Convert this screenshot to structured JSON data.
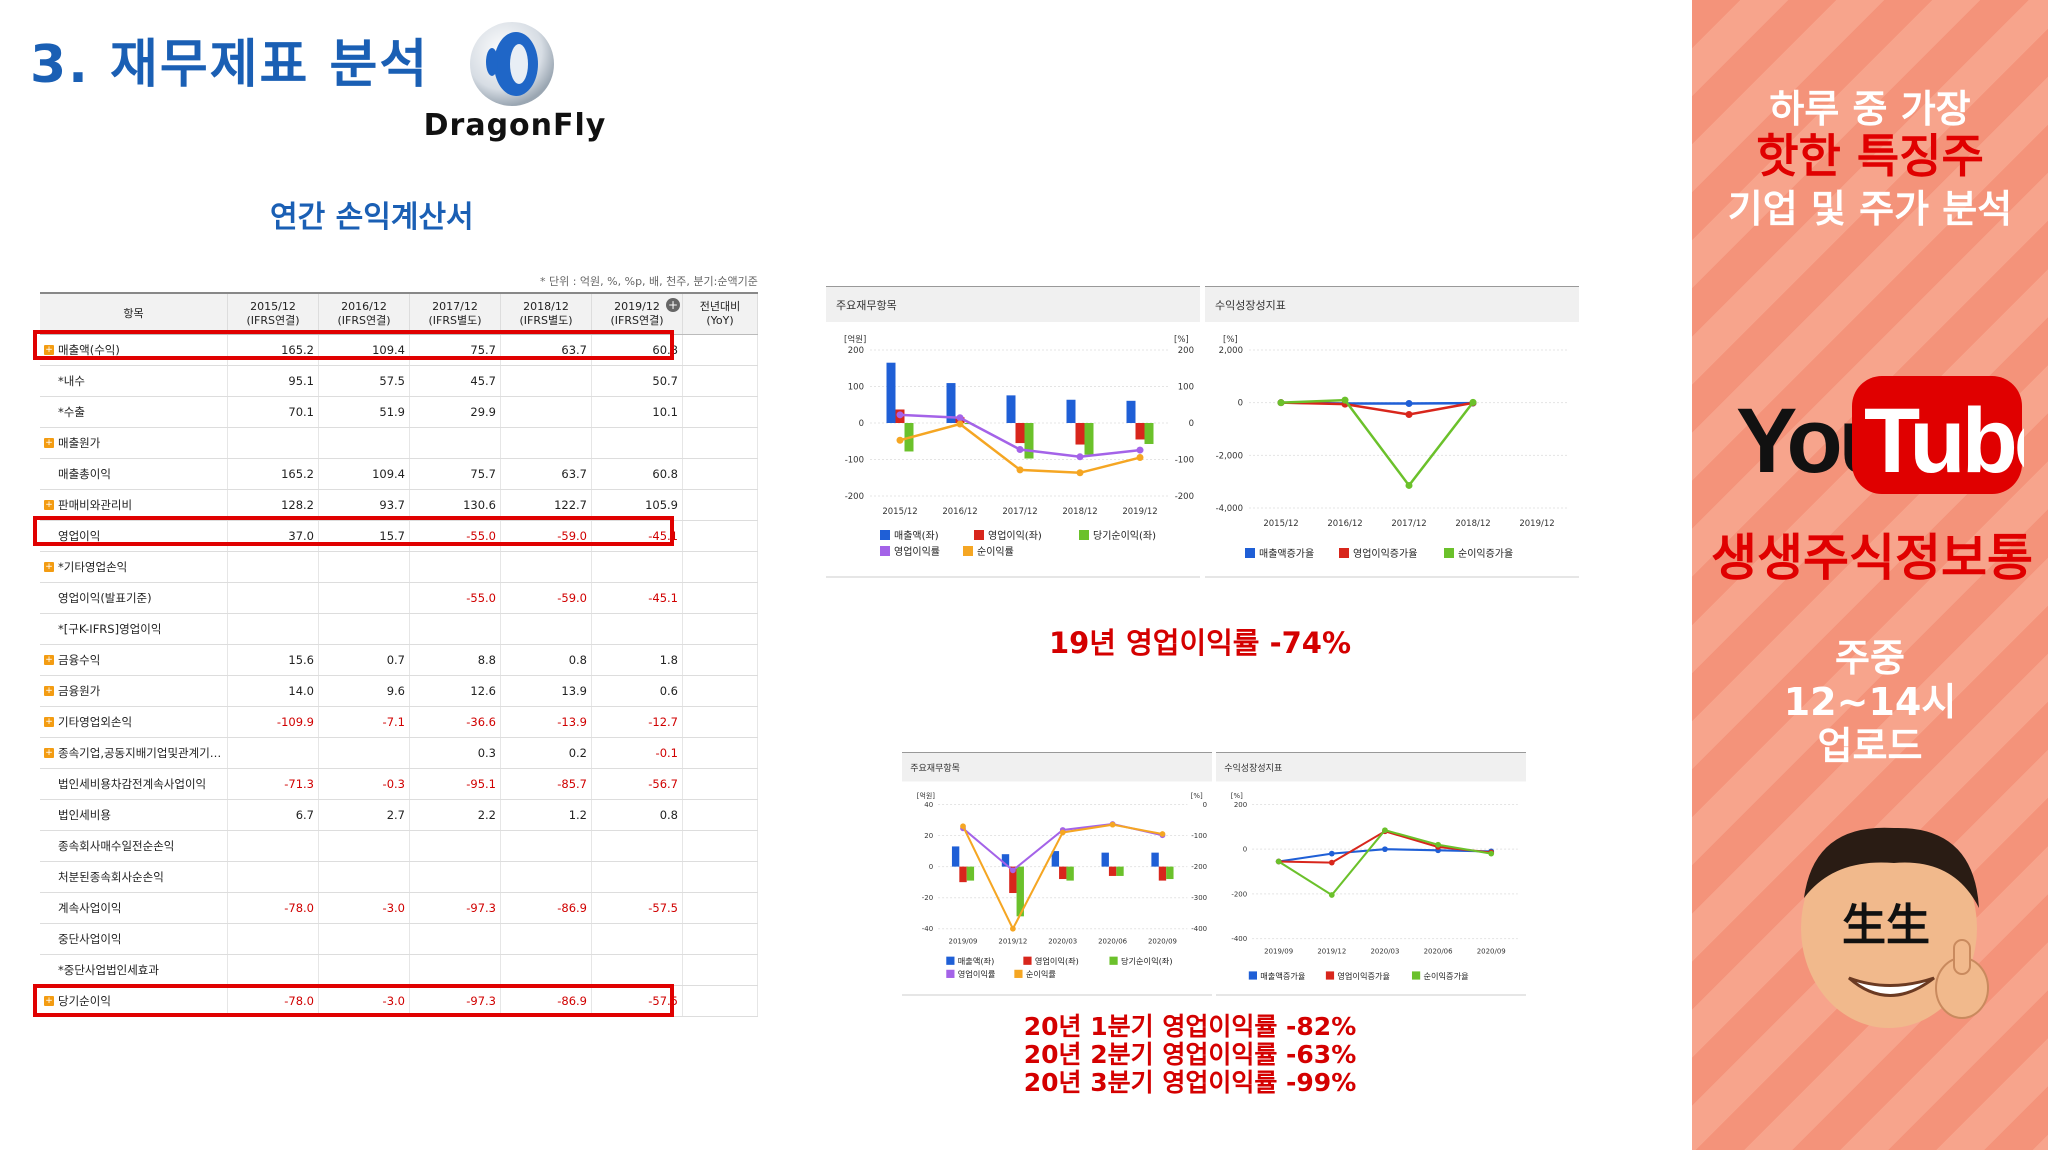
{
  "title": "3. 재무제표 분석",
  "logo_text": "DragonFly",
  "section_title": "연간 손익계산서",
  "unit_note": "* 단위 : 억원, %, %p, 배, 천주, 분기:순액기준",
  "table": {
    "header_item": "항목",
    "columns": [
      {
        "year": "2015/12",
        "basis": "(IFRS연결)"
      },
      {
        "year": "2016/12",
        "basis": "(IFRS연결)"
      },
      {
        "year": "2017/12",
        "basis": "(IFRS별도)"
      },
      {
        "year": "2018/12",
        "basis": "(IFRS별도)"
      },
      {
        "year": "2019/12",
        "basis": "(IFRS연결)"
      }
    ],
    "yoy": {
      "line1": "전년대비",
      "line2": "(YoY)"
    },
    "rows": [
      {
        "label": "매출액(수익)",
        "exp": true,
        "values": [
          "165.2",
          "109.4",
          "75.7",
          "63.7",
          "60.8"
        ]
      },
      {
        "label": "*내수",
        "exp": false,
        "values": [
          "95.1",
          "57.5",
          "45.7",
          "",
          "50.7"
        ]
      },
      {
        "label": "*수출",
        "exp": false,
        "values": [
          "70.1",
          "51.9",
          "29.9",
          "",
          "10.1"
        ]
      },
      {
        "label": "매출원가",
        "exp": true,
        "values": [
          "",
          "",
          "",
          "",
          ""
        ]
      },
      {
        "label": "매출총이익",
        "exp": false,
        "values": [
          "165.2",
          "109.4",
          "75.7",
          "63.7",
          "60.8"
        ]
      },
      {
        "label": "판매비와관리비",
        "exp": true,
        "values": [
          "128.2",
          "93.7",
          "130.6",
          "122.7",
          "105.9"
        ]
      },
      {
        "label": "영업이익",
        "exp": false,
        "values": [
          "37.0",
          "15.7",
          "-55.0",
          "-59.0",
          "-45.1"
        ]
      },
      {
        "label": "*기타영업손익",
        "exp": true,
        "values": [
          "",
          "",
          "",
          "",
          ""
        ]
      },
      {
        "label": "영업이익(발표기준)",
        "exp": false,
        "values": [
          "",
          "",
          "-55.0",
          "-59.0",
          "-45.1"
        ]
      },
      {
        "label": "*[구K-IFRS]영업이익",
        "exp": false,
        "values": [
          "",
          "",
          "",
          "",
          ""
        ]
      },
      {
        "label": "금융수익",
        "exp": true,
        "values": [
          "15.6",
          "0.7",
          "8.8",
          "0.8",
          "1.8"
        ]
      },
      {
        "label": "금융원가",
        "exp": true,
        "values": [
          "14.0",
          "9.6",
          "12.6",
          "13.9",
          "0.6"
        ]
      },
      {
        "label": "기타영업외손익",
        "exp": true,
        "values": [
          "-109.9",
          "-7.1",
          "-36.6",
          "-13.9",
          "-12.7"
        ]
      },
      {
        "label": "종속기업,공동지배기업및관계기…",
        "exp": true,
        "values": [
          "",
          "",
          "0.3",
          "0.2",
          "-0.1"
        ]
      },
      {
        "label": "법인세비용차감전계속사업이익",
        "exp": false,
        "values": [
          "-71.3",
          "-0.3",
          "-95.1",
          "-85.7",
          "-56.7"
        ]
      },
      {
        "label": "법인세비용",
        "exp": false,
        "values": [
          "6.7",
          "2.7",
          "2.2",
          "1.2",
          "0.8"
        ]
      },
      {
        "label": "종속회사매수일전순손익",
        "exp": false,
        "values": [
          "",
          "",
          "",
          "",
          ""
        ]
      },
      {
        "label": "처분된종속회사순손익",
        "exp": false,
        "values": [
          "",
          "",
          "",
          "",
          ""
        ]
      },
      {
        "label": "계속사업이익",
        "exp": false,
        "values": [
          "-78.0",
          "-3.0",
          "-97.3",
          "-86.9",
          "-57.5"
        ]
      },
      {
        "label": "중단사업이익",
        "exp": false,
        "values": [
          "",
          "",
          "",
          "",
          ""
        ]
      },
      {
        "label": "*중단사업법인세효과",
        "exp": false,
        "values": [
          "",
          "",
          "",
          "",
          ""
        ]
      },
      {
        "label": "당기순이익",
        "exp": true,
        "values": [
          "-78.0",
          "-3.0",
          "-97.3",
          "-86.9",
          "-57.5"
        ]
      }
    ]
  },
  "chart_data": [
    {
      "type": "bar",
      "title": "주요재무항목",
      "period": "annual",
      "categories": [
        "2015/12",
        "2016/12",
        "2017/12",
        "2018/12",
        "2019/12"
      ],
      "left_axis": {
        "label": "[억원]",
        "ticks": [
          "200",
          "100",
          "0",
          "-100",
          "-200"
        ],
        "range": [
          -200,
          200
        ]
      },
      "right_axis": {
        "label": "[%]",
        "ticks": [
          "200",
          "100",
          "0",
          "-100",
          "-200"
        ],
        "range": [
          -200,
          200
        ]
      },
      "series": [
        {
          "name": "매출액(좌)",
          "kind": "bar",
          "color": "#1f5fd6",
          "values": [
            165.2,
            109.4,
            75.7,
            63.7,
            60.8
          ]
        },
        {
          "name": "영업이익(좌)",
          "kind": "bar",
          "color": "#d8261c",
          "values": [
            37.0,
            15.7,
            -55.0,
            -59.0,
            -45.1
          ]
        },
        {
          "name": "당기순이익(좌)",
          "kind": "bar",
          "color": "#6bc12b",
          "values": [
            -78.0,
            -3.0,
            -97.3,
            -86.9,
            -57.5
          ]
        },
        {
          "name": "영업이익률",
          "kind": "line",
          "color": "#a463e8",
          "values": [
            22.4,
            14.4,
            -72.7,
            -92.6,
            -74.2
          ]
        },
        {
          "name": "순이익률",
          "kind": "line",
          "color": "#f5a623",
          "values": [
            -47.2,
            -2.7,
            -128.5,
            -136.4,
            -94.6
          ]
        }
      ],
      "legend": [
        [
          "매출액(좌)",
          "영업이익(좌)",
          "당기순이익(좌)"
        ],
        [
          "영업이익률",
          "순이익률"
        ]
      ]
    },
    {
      "type": "line",
      "title": "수익성장성지표",
      "period": "annual",
      "categories": [
        "2015/12",
        "2016/12",
        "2017/12",
        "2018/12",
        "2019/12"
      ],
      "axis": {
        "label": "[%]",
        "ticks": [
          "2,000",
          "0",
          "-2,000",
          "-4,000"
        ],
        "range": [
          -4000,
          2000
        ]
      },
      "series": [
        {
          "name": "매출액증가율",
          "color": "#1f5fd6",
          "values": [
            0,
            -33.8,
            -30.8,
            -15.9,
            null
          ]
        },
        {
          "name": "영업이익증가율",
          "color": "#d8261c",
          "values": [
            0,
            -57.6,
            -450.3,
            -7.3,
            null
          ]
        },
        {
          "name": "순이익증가율",
          "color": "#6bc12b",
          "values": [
            0,
            96.2,
            -3143.3,
            10.7,
            null
          ]
        }
      ],
      "legend": [
        "매출액증가율",
        "영업이익증가율",
        "순이익증가율"
      ]
    },
    {
      "type": "bar",
      "title": "주요재무항목",
      "period": "quarterly",
      "categories": [
        "2019/09",
        "2019/12",
        "2020/03",
        "2020/06",
        "2020/09"
      ],
      "left_axis": {
        "label": "[억원]",
        "ticks": [
          "40",
          "20",
          "0",
          "-20",
          "-40"
        ],
        "range": [
          -40,
          40
        ]
      },
      "right_axis": {
        "label": "[%]",
        "ticks": [
          "0",
          "-100",
          "-200",
          "-300",
          "-400"
        ],
        "range": [
          -400,
          0
        ]
      },
      "series": [
        {
          "name": "매출액(좌)",
          "kind": "bar",
          "color": "#1f5fd6",
          "values": [
            13,
            8,
            10,
            9,
            9
          ]
        },
        {
          "name": "영업이익(좌)",
          "kind": "bar",
          "color": "#d8261c",
          "values": [
            -10,
            -17,
            -8,
            -6,
            -9
          ]
        },
        {
          "name": "당기순이익(좌)",
          "kind": "bar",
          "color": "#6bc12b",
          "values": [
            -9,
            -32,
            -9,
            -6,
            -8
          ]
        },
        {
          "name": "영업이익률",
          "kind": "line",
          "color": "#a463e8",
          "values": [
            -77,
            -212,
            -82,
            -63,
            -99
          ]
        },
        {
          "name": "순이익률",
          "kind": "line",
          "color": "#f5a623",
          "values": [
            -70,
            -400,
            -90,
            -65,
            -95
          ]
        }
      ],
      "legend": [
        [
          "매출액(좌)",
          "영업이익(좌)",
          "당기순이익(좌)"
        ],
        [
          "영업이익률",
          "순이익률"
        ]
      ]
    },
    {
      "type": "line",
      "title": "수익성장성지표",
      "period": "quarterly",
      "categories": [
        "2019/09",
        "2019/12",
        "2020/03",
        "2020/06",
        "2020/09"
      ],
      "axis": {
        "label": "[%]",
        "ticks": [
          "200",
          "0",
          "-200",
          "-400"
        ],
        "range": [
          -400,
          200
        ]
      },
      "series": [
        {
          "name": "매출액증가율",
          "color": "#1f5fd6",
          "values": [
            -55,
            -20,
            0,
            -5,
            -10
          ]
        },
        {
          "name": "영업이익증가율",
          "color": "#d8261c",
          "values": [
            -55,
            -60,
            80,
            10,
            -15
          ]
        },
        {
          "name": "순이익증가율",
          "color": "#6bc12b",
          "values": [
            -55,
            -205,
            85,
            20,
            -20
          ]
        }
      ],
      "legend": [
        "매출액증가율",
        "영업이익증가율",
        "순이익증가율"
      ]
    }
  ],
  "annotation1": "19년 영업이익률 -74%",
  "annotation2": [
    "20년 1분기 영업이익률 -82%",
    "20년 2분기 영업이익률 -63%",
    "20년 3분기 영업이익률 -99%"
  ],
  "sidebar": {
    "line1": "하루 중 가장",
    "line2": "핫한 특징주",
    "line3": "기업 및 주가 분석",
    "youtube_you": "You",
    "youtube_tube": "Tube",
    "channel": "생생주식정보통",
    "schedule": [
      "주중",
      "12~14시",
      "업로드"
    ],
    "avatar_text": "生生",
    "colors": {
      "bg": "#f4937a",
      "accent": "#e00000"
    }
  }
}
